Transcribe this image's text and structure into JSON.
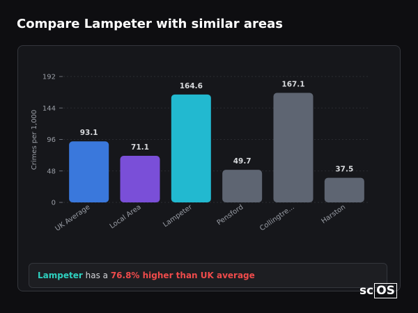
{
  "title": "Compare Lampeter with similar areas",
  "chart_data": {
    "type": "bar",
    "y_label": "Crimes per 1,000",
    "categories": [
      "UK Average",
      "Local Area",
      "Lampeter",
      "Pensford",
      "Collingtre...",
      "Harston"
    ],
    "values": [
      93.1,
      71.1,
      164.6,
      49.7,
      167.1,
      37.5
    ],
    "colors": [
      "#3a78dc",
      "#7a4fd8",
      "#22b9d0",
      "#5e6572",
      "#5e6572",
      "#5e6572"
    ],
    "ylim": [
      0,
      192
    ],
    "yticks": [
      0,
      48,
      96,
      144,
      192
    ],
    "grid": true
  },
  "summary": {
    "area": "Lampeter",
    "connector": "has a",
    "comparison": "76.8% higher than UK average"
  },
  "logo": [
    "sc",
    "OS"
  ]
}
